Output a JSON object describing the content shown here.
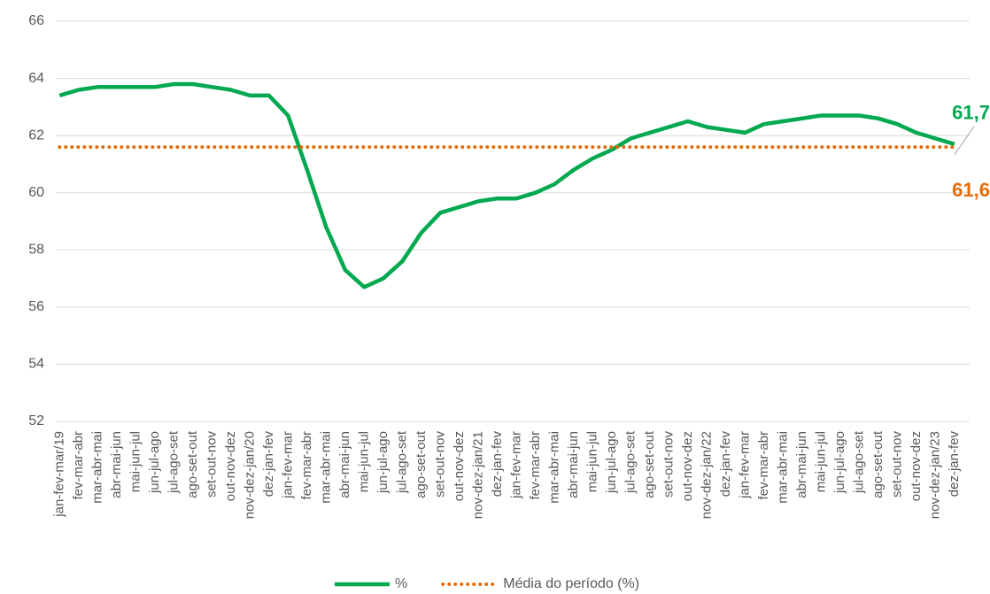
{
  "chart_data": {
    "type": "line",
    "categories": [
      "jan-fev-mar/19",
      "fev-mar-abr",
      "mar-abr-mai",
      "abr-mai-jun",
      "mai-jun-jul",
      "jun-jul-ago",
      "jul-ago-set",
      "ago-set-out",
      "set-out-nov",
      "out-nov-dez",
      "nov-dez-jan/20",
      "dez-jan-fev",
      "jan-fev-mar",
      "fev-mar-abr",
      "mar-abr-mai",
      "abr-mai-jun",
      "mai-jun-jul",
      "jun-jul-ago",
      "jul-ago-set",
      "ago-set-out",
      "set-out-nov",
      "out-nov-dez",
      "nov-dez-jan/21",
      "dez-jan-fev",
      "jan-fev-mar",
      "fev-mar-abr",
      "mar-abr-mai",
      "abr-mai-jun",
      "mai-jun-jul",
      "jun-jul-ago",
      "jul-ago-set",
      "ago-set-out",
      "set-out-nov",
      "out-nov-dez",
      "nov-dez-jan/22",
      "dez-jan-fev",
      "jan-fev-mar",
      "fev-mar-abr",
      "mar-abr-mai",
      "abr-mai-jun",
      "mai-jun-jul",
      "jun-jul-ago",
      "jul-ago-set",
      "ago-set-out",
      "set-out-nov",
      "out-nov-dez",
      "nov-dez-jan/23",
      "dez-jan-fev"
    ],
    "series": [
      {
        "name": "%",
        "color": "#00a94f",
        "style": "solid",
        "values": [
          63.4,
          63.6,
          63.7,
          63.7,
          63.7,
          63.7,
          63.8,
          63.8,
          63.7,
          63.6,
          63.4,
          63.4,
          62.7,
          60.8,
          58.8,
          57.3,
          56.7,
          57.0,
          57.6,
          58.6,
          59.3,
          59.5,
          59.7,
          59.8,
          59.8,
          60.0,
          60.3,
          60.8,
          61.2,
          61.5,
          61.9,
          62.1,
          62.3,
          62.5,
          62.3,
          62.2,
          62.1,
          62.4,
          62.5,
          62.6,
          62.7,
          62.7,
          62.7,
          62.6,
          62.4,
          62.1,
          61.9,
          61.7
        ],
        "value_labels": [
          null,
          null,
          null,
          null,
          null,
          null,
          null,
          null,
          null,
          null,
          null,
          null,
          null,
          null,
          null,
          null,
          null,
          null,
          null,
          null,
          null,
          null,
          null,
          null,
          null,
          null,
          null,
          null,
          null,
          null,
          null,
          null,
          null,
          null,
          null,
          null,
          null,
          null,
          null,
          null,
          null,
          null,
          null,
          null,
          null,
          null,
          null,
          "61,7"
        ]
      },
      {
        "name": "Média do período (%)",
        "color": "#e46c0a",
        "style": "dotted",
        "values": [
          61.6,
          61.6,
          61.6,
          61.6,
          61.6,
          61.6,
          61.6,
          61.6,
          61.6,
          61.6,
          61.6,
          61.6,
          61.6,
          61.6,
          61.6,
          61.6,
          61.6,
          61.6,
          61.6,
          61.6,
          61.6,
          61.6,
          61.6,
          61.6,
          61.6,
          61.6,
          61.6,
          61.6,
          61.6,
          61.6,
          61.6,
          61.6,
          61.6,
          61.6,
          61.6,
          61.6,
          61.6,
          61.6,
          61.6,
          61.6,
          61.6,
          61.6,
          61.6,
          61.6,
          61.6,
          61.6,
          61.6,
          61.6
        ],
        "value_labels": [
          null,
          null,
          null,
          null,
          null,
          null,
          null,
          null,
          null,
          null,
          null,
          null,
          null,
          null,
          null,
          null,
          null,
          null,
          null,
          null,
          null,
          null,
          null,
          null,
          null,
          null,
          null,
          null,
          null,
          null,
          null,
          null,
          null,
          null,
          null,
          null,
          null,
          null,
          null,
          null,
          null,
          null,
          null,
          null,
          null,
          null,
          null,
          "61,6"
        ]
      }
    ],
    "ylim": [
      52,
      66
    ],
    "yticks": [
      52,
      54,
      56,
      58,
      60,
      62,
      64,
      66
    ],
    "grid": true,
    "legend": "bottom"
  }
}
